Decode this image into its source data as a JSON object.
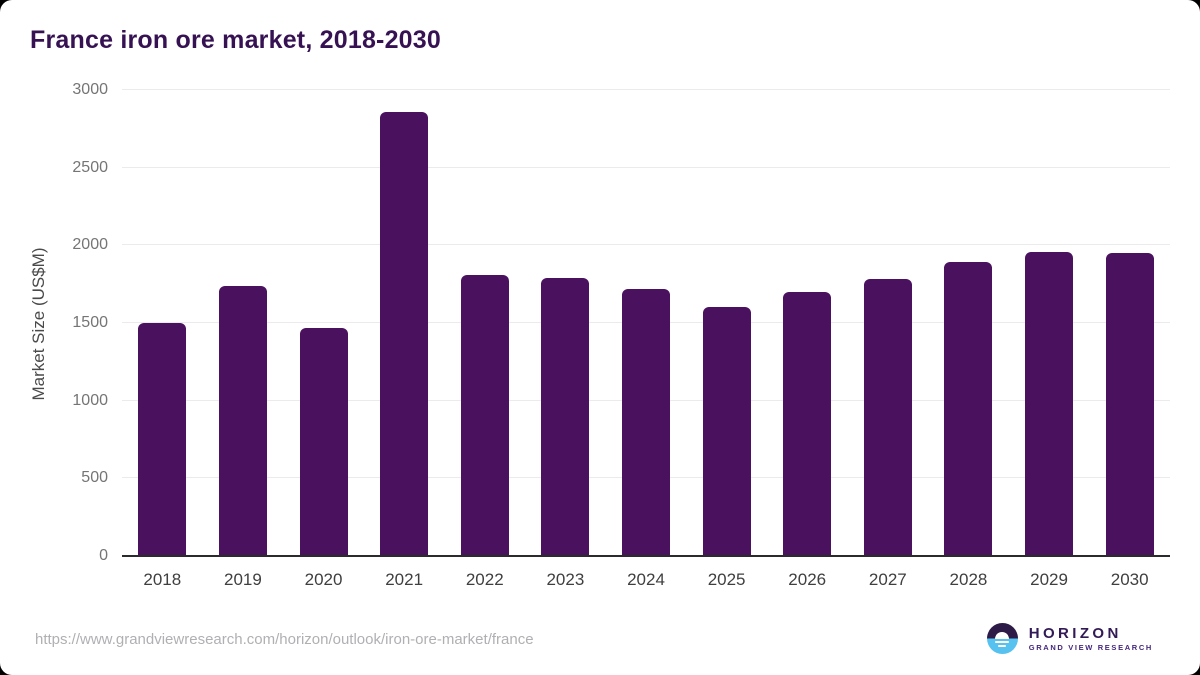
{
  "header": {
    "title": "France iron ore market, 2018-2030"
  },
  "chart_data": {
    "type": "bar",
    "title": "France iron ore market, 2018-2030",
    "categories": [
      "2018",
      "2019",
      "2020",
      "2021",
      "2022",
      "2023",
      "2024",
      "2025",
      "2026",
      "2027",
      "2028",
      "2029",
      "2030"
    ],
    "values": [
      1500,
      1740,
      1470,
      2860,
      1810,
      1790,
      1720,
      1605,
      1700,
      1785,
      1890,
      1960,
      1950
    ],
    "xlabel": "",
    "ylabel": "Market Size (US$M)",
    "ylim": [
      0,
      3000
    ],
    "yticks": [
      0,
      500,
      1000,
      1500,
      2000,
      2500,
      3000
    ],
    "grid": true,
    "legend": false,
    "bar_color": "#4a115e"
  },
  "footer": {
    "source_url": "https://www.grandviewresearch.com/horizon/outlook/iron-ore-market/france",
    "logo": {
      "brand": "HORIZON",
      "sub_brand": "GRAND VIEW RESEARCH",
      "circle_top_color": "#2d1a47",
      "circle_bottom_color": "#57c2f0"
    }
  }
}
